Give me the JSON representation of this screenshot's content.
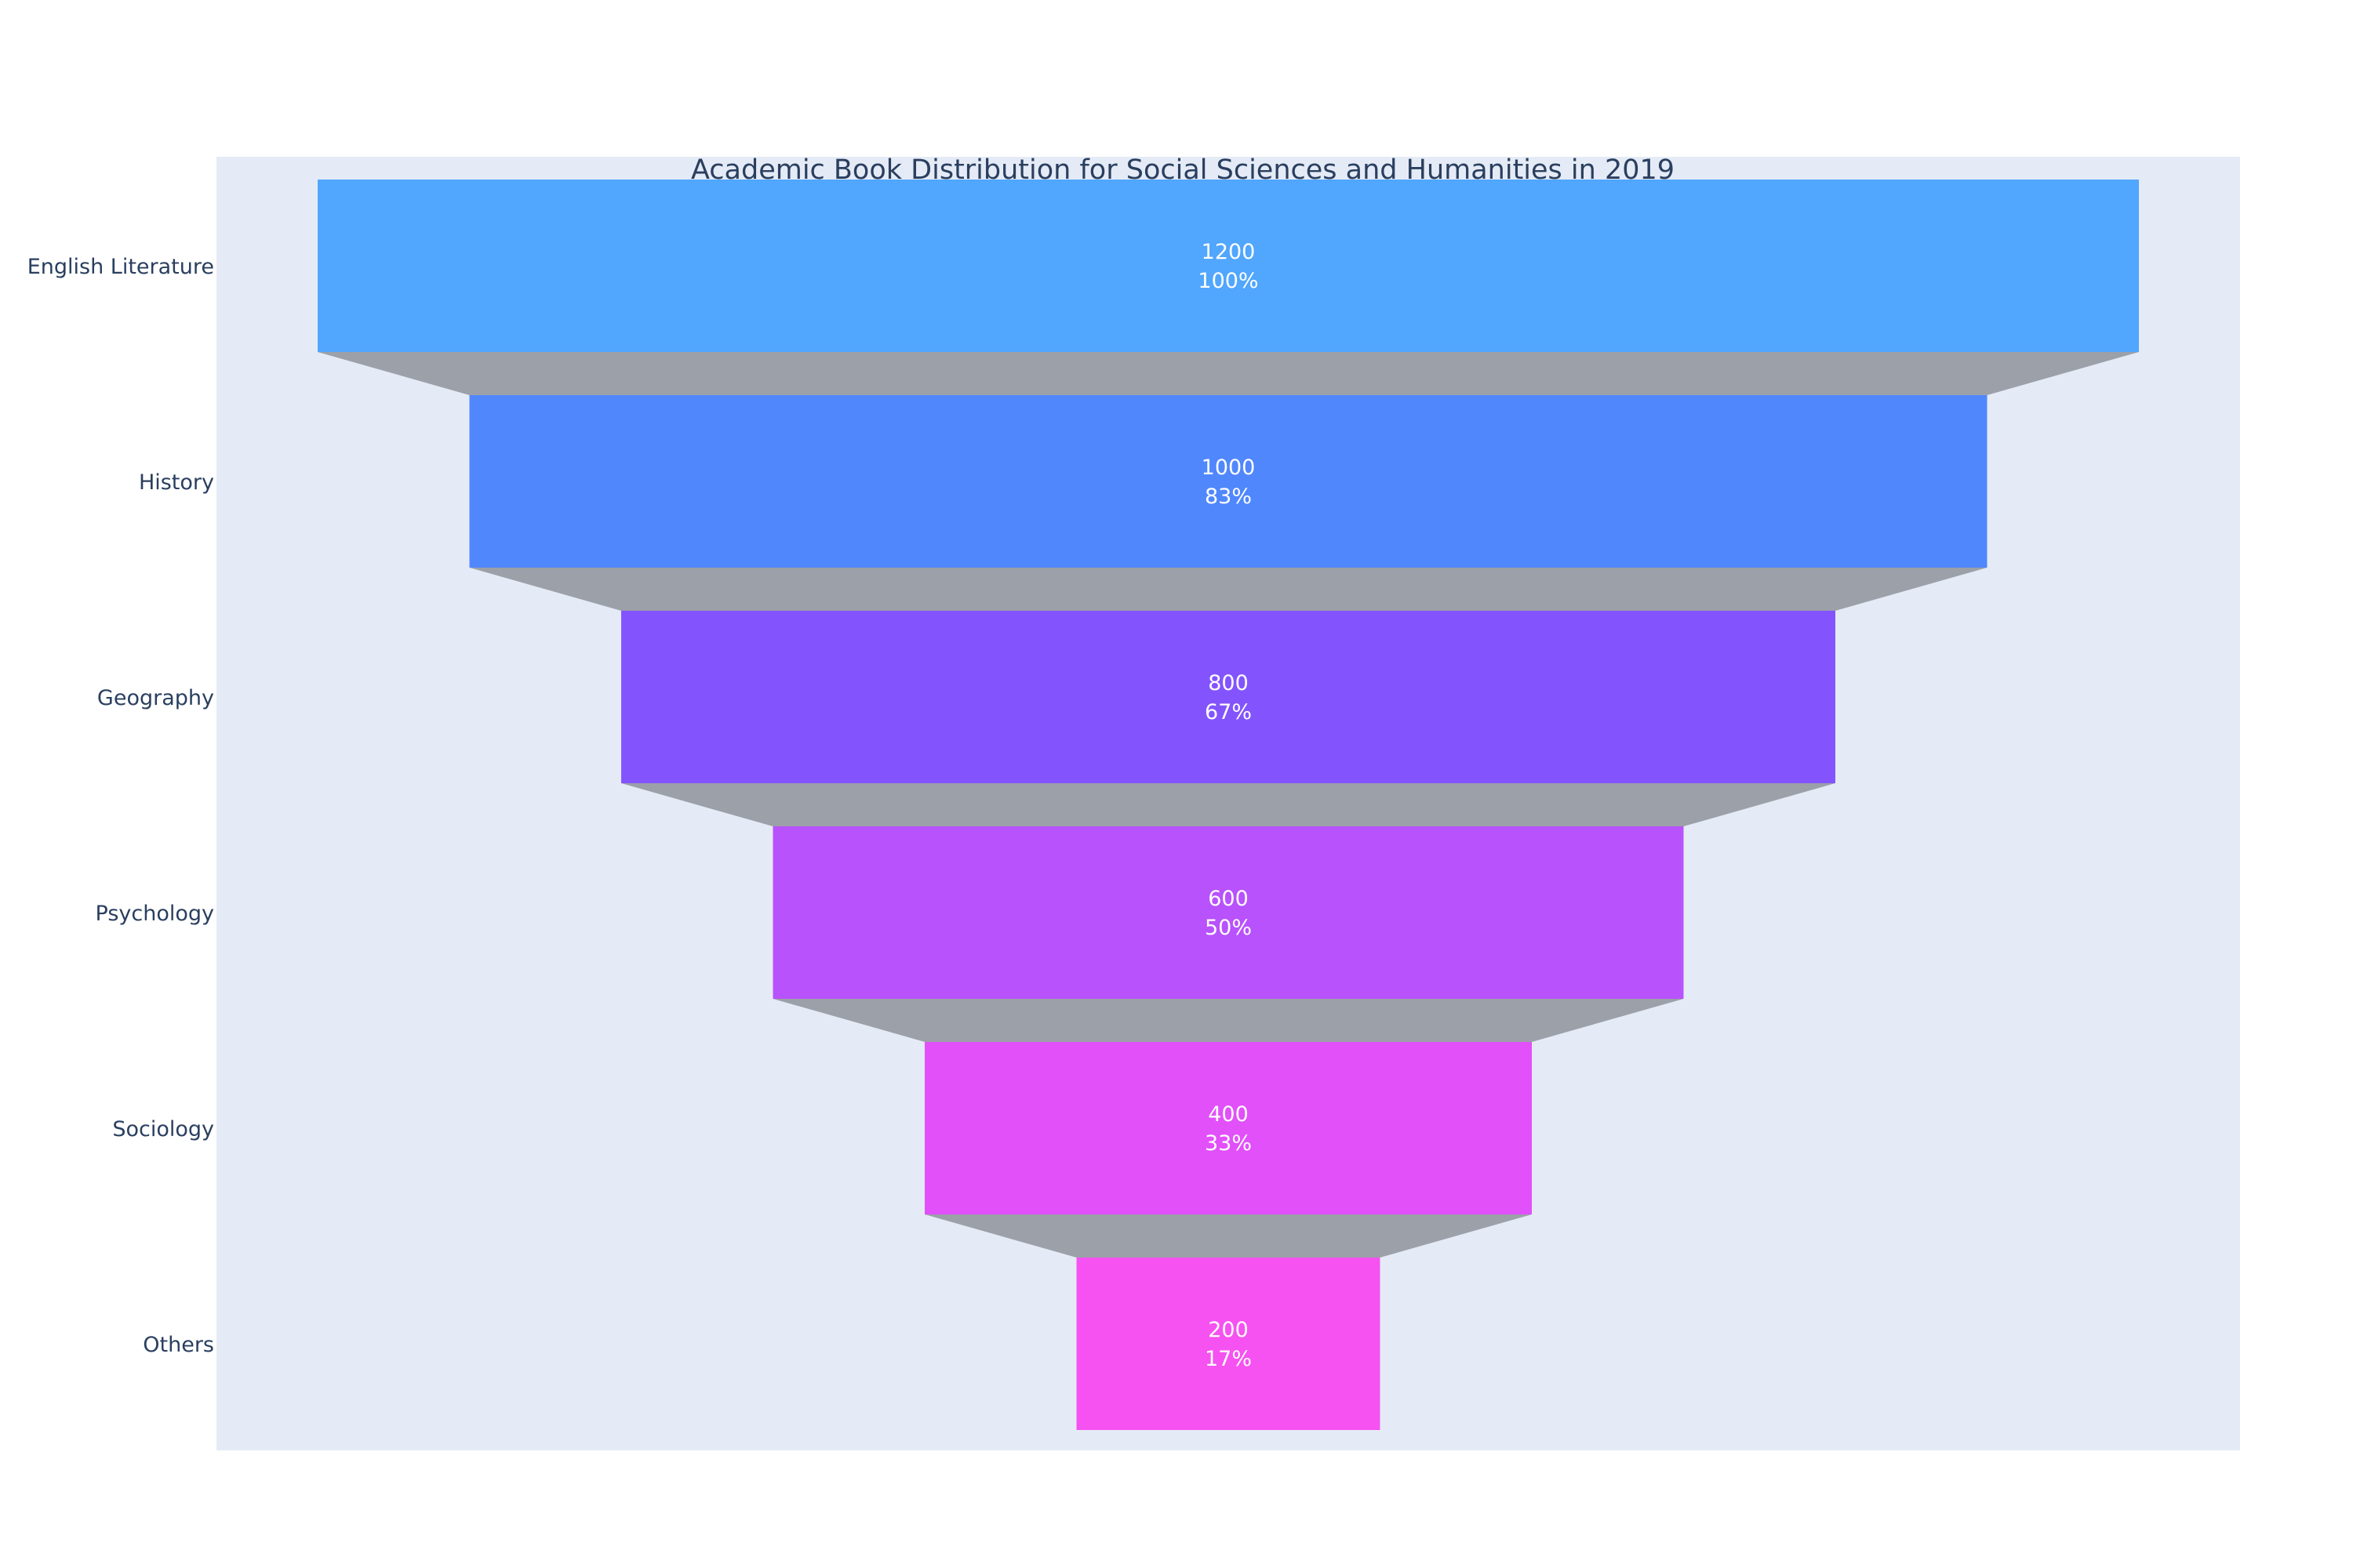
{
  "chart_data": {
    "type": "funnel",
    "title": "Academic Book Distribution for Social Sciences and Humanities in 2019",
    "categories": [
      "English Literature",
      "History",
      "Geography",
      "Psychology",
      "Sociology",
      "Others"
    ],
    "values": [
      1200,
      1000,
      800,
      600,
      400,
      200
    ],
    "percent_labels": [
      "100%",
      "83%",
      "67%",
      "50%",
      "33%",
      "17%"
    ],
    "colors": [
      "#51a6fd",
      "#5087fd",
      "#8354fd",
      "#b852fc",
      "#e150f9",
      "#f652f1"
    ],
    "connector_color": "#9ca0a8",
    "plot_background": "#e5ebf6",
    "legend": "none",
    "grid": false
  }
}
